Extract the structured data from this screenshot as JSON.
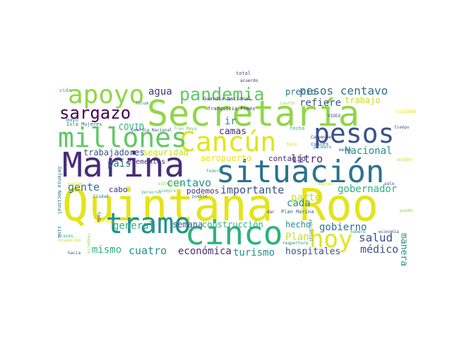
{
  "palette": {
    "yellow": "#e4e419",
    "lime": "#8fd744",
    "green": "#5ec962",
    "teal": "#21918c",
    "seaGreen": "#2db27d",
    "blueTeal": "#2c728e",
    "blue": "#3b528b",
    "indigo": "#472d7b",
    "purple": "#440154",
    "khaki": "#c8e020"
  },
  "words": [
    {
      "text": "Quintana Roo",
      "color": "yellow"
    },
    {
      "text": "Secretaría",
      "color": "lime"
    },
    {
      "text": "Marina",
      "color": "indigo"
    },
    {
      "text": "situación",
      "color": "blueTeal"
    },
    {
      "text": "cinco",
      "color": "seaGreen"
    },
    {
      "text": "Cancún",
      "color": "yellow"
    },
    {
      "text": "tramo",
      "color": "teal"
    },
    {
      "text": "millones",
      "color": "green"
    },
    {
      "text": "pesos",
      "color": "blue"
    },
    {
      "text": "apoyo",
      "color": "lime"
    },
    {
      "text": "hoy",
      "color": "yellow"
    },
    {
      "text": "sargazo",
      "color": "purple"
    },
    {
      "text": "pandemia",
      "color": "green"
    },
    {
      "text": "pesos centavo",
      "color": "blueTeal"
    },
    {
      "text": "agua",
      "color": "indigo"
    },
    {
      "text": "refiere",
      "color": "blue"
    },
    {
      "text": "trabajo",
      "color": "khaki"
    },
    {
      "text": "precio",
      "color": "blueTeal"
    },
    {
      "text": "ir",
      "color": "teal"
    },
    {
      "text": "camas",
      "color": "indigo"
    },
    {
      "text": "COVID",
      "color": "seaGreen"
    },
    {
      "text": "Nacional",
      "color": "teal"
    },
    {
      "text": "trabajadores",
      "color": "blue"
    },
    {
      "text": "seguridad",
      "color": "khaki"
    },
    {
      "text": "aeropuerto",
      "color": "yellow"
    },
    {
      "text": "contagio",
      "color": "indigo"
    },
    {
      "text": "litro",
      "color": "indigo"
    },
    {
      "text": "país",
      "color": "blueTeal"
    },
    {
      "text": "elementos",
      "color": "indigo"
    },
    {
      "text": "centavo",
      "color": "teal"
    },
    {
      "text": "importante",
      "color": "blue"
    },
    {
      "text": "gobernador",
      "color": "seaGreen"
    },
    {
      "text": "gente",
      "color": "blueTeal"
    },
    {
      "text": "cabo",
      "color": "indigo"
    },
    {
      "text": "podemos",
      "color": "indigo"
    },
    {
      "text": "cada",
      "color": "teal"
    },
    {
      "text": "parte",
      "color": "khaki"
    },
    {
      "text": "general",
      "color": "seaGreen"
    },
    {
      "text": "semana",
      "color": "blue"
    },
    {
      "text": "construcción",
      "color": "seaGreen"
    },
    {
      "text": "hecho",
      "color": "teal"
    },
    {
      "text": "gobierno",
      "color": "blueTeal"
    },
    {
      "text": "Plan",
      "color": "khaki"
    },
    {
      "text": "salud",
      "color": "blue"
    },
    {
      "text": "manera",
      "color": "teal"
    },
    {
      "text": "mismo",
      "color": "seaGreen"
    },
    {
      "text": "cuatro",
      "color": "teal"
    },
    {
      "text": "económica",
      "color": "indigo"
    },
    {
      "text": "turismo",
      "color": "teal"
    },
    {
      "text": "hospitales",
      "color": "blue"
    },
    {
      "text": "médico",
      "color": "blue"
    },
    {
      "text": "vida",
      "color": "seaGreen"
    },
    {
      "text": "Tulum",
      "color": "blueTeal"
    },
    {
      "text": "total",
      "color": "blue"
    },
    {
      "text": "acuerdo",
      "color": "indigo"
    },
    {
      "text": "Guardia Nacional",
      "color": "indigo"
    },
    {
      "text": "franquicia Pemex",
      "color": "indigo"
    },
    {
      "text": "cuidado",
      "color": "yellow"
    },
    {
      "text": "mayo",
      "color": "teal"
    },
    {
      "text": "Isla Mujeres",
      "color": "blueTeal"
    },
    {
      "text": "Guardia Nacional",
      "color": "blue"
    },
    {
      "text": "Tren Maya",
      "color": "green"
    },
    {
      "text": "fecha",
      "color": "seaGreen"
    },
    {
      "text": "Campeche",
      "color": "indigo"
    },
    {
      "text": "cuales",
      "color": "blue"
    },
    {
      "text": "tiempo",
      "color": "blueTeal"
    },
    {
      "text": "VIDEO",
      "color": "blue"
    },
    {
      "text": "primero",
      "color": "teal"
    },
    {
      "text": "meses",
      "color": "blue"
    },
    {
      "text": "avión",
      "color": "khaki"
    },
    {
      "text": "federal",
      "color": "seaGreen"
    },
    {
      "text": "empleo",
      "color": "khaki"
    },
    {
      "text": "equipo",
      "color": "yellow"
    },
    {
      "text": "estrategia",
      "color": "lime"
    },
    {
      "text": "Veracruz",
      "color": "seaGreen"
    },
    {
      "text": "siempre",
      "color": "green"
    },
    {
      "text": "pueblo",
      "color": "blueTeal"
    },
    {
      "text": "dar",
      "color": "indigo"
    },
    {
      "text": "Plan Marina",
      "color": "blue"
    },
    {
      "text": "servicio",
      "color": "yellow"
    },
    {
      "text": "través",
      "color": "seaGreen"
    },
    {
      "text": "ocupación",
      "color": "khaki"
    },
    {
      "text": "hacia",
      "color": "blue"
    },
    {
      "text": "reapertura",
      "color": "teal"
    },
    {
      "text": "número",
      "color": "teal"
    },
    {
      "text": "economía",
      "color": "blue"
    },
    {
      "text": "sino",
      "color": "blueTeal"
    },
    {
      "text": "Defensa Nacional",
      "color": "blueTeal"
    },
    {
      "text": "Ciudad",
      "color": "blueTeal"
    },
    {
      "text": "toda",
      "color": "indigo"
    },
    {
      "text": "respecto",
      "color": "lime"
    },
    {
      "text": "ambiental",
      "color": "teal"
    },
    {
      "text": "cuarto",
      "color": "lime"
    },
    {
      "text": "solo",
      "color": "indigo"
    },
    {
      "text": "puede",
      "color": "lime"
    },
    {
      "text": "bajo",
      "color": "khaki"
    },
    {
      "text": "Gobierno",
      "color": "teal"
    }
  ]
}
